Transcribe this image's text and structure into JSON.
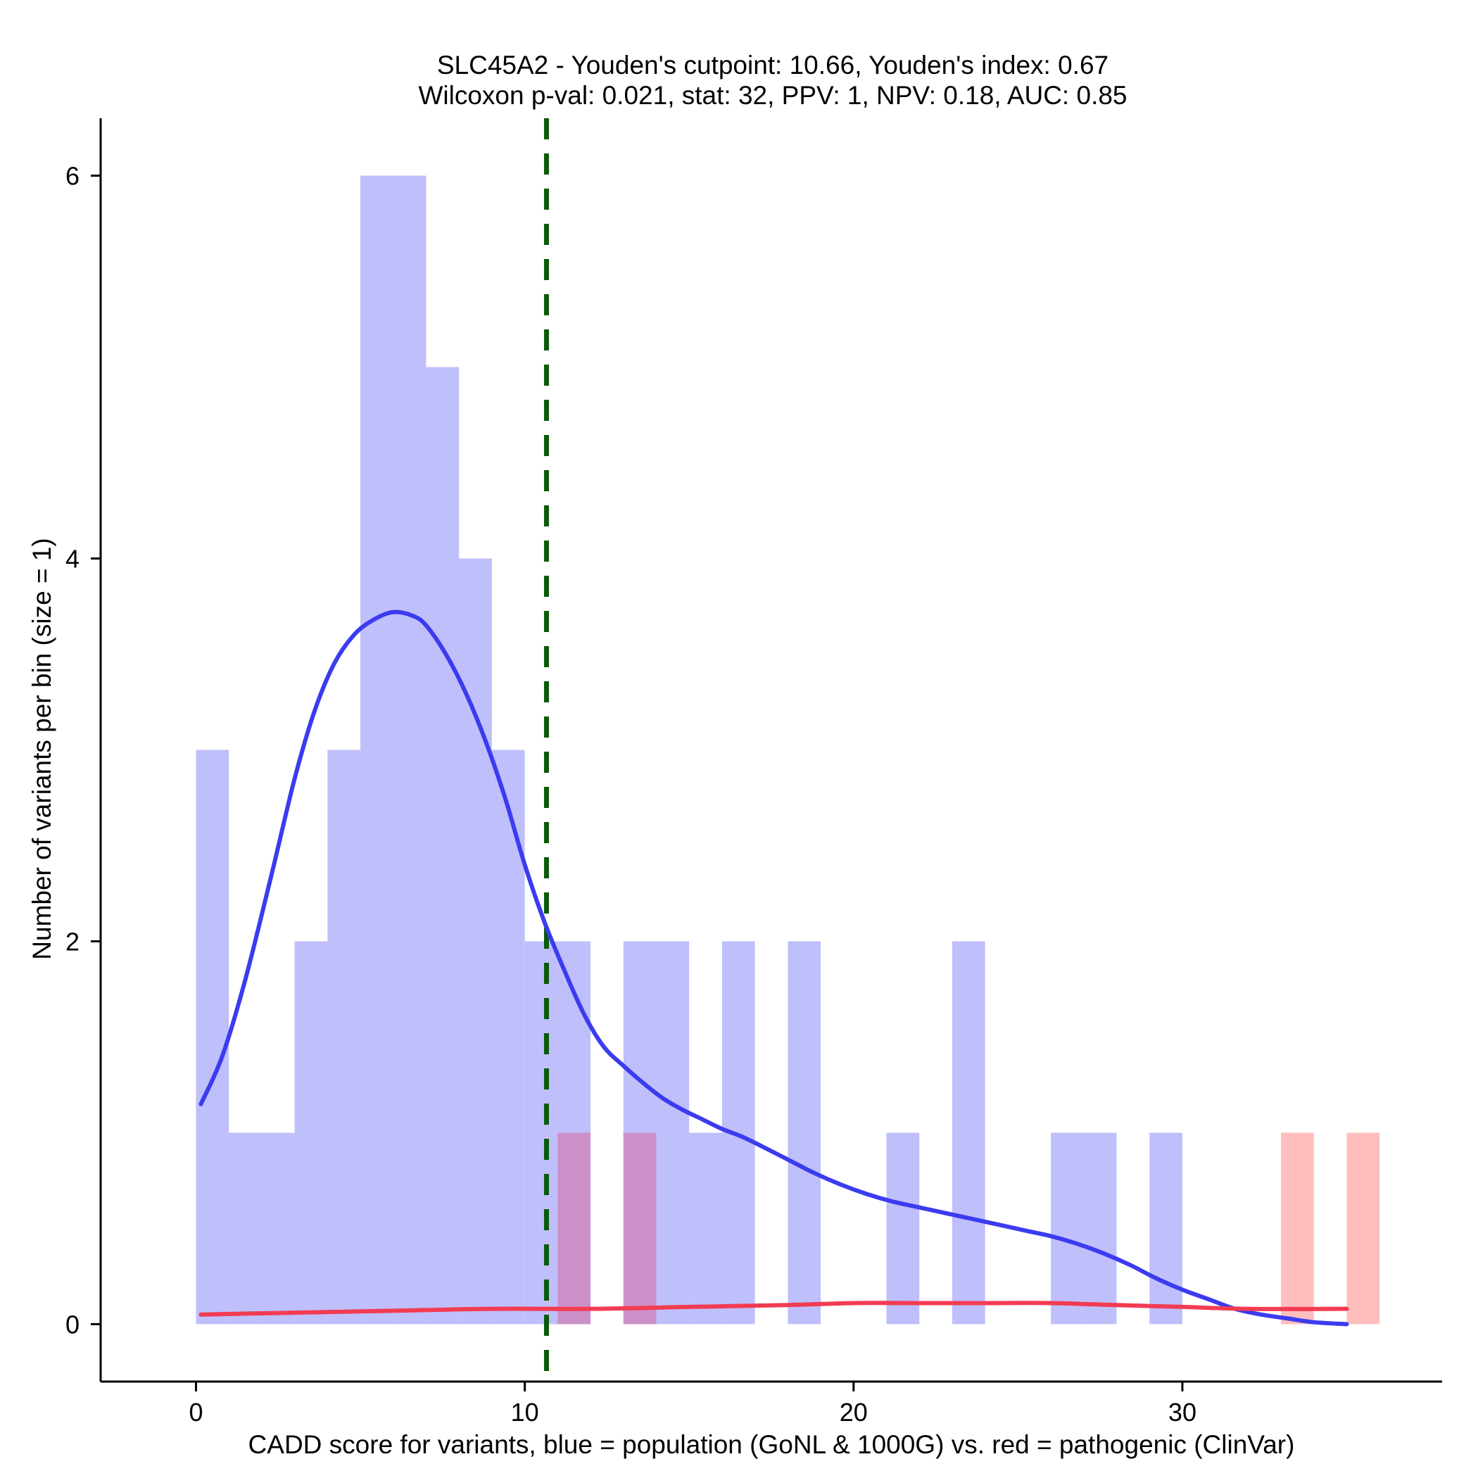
{
  "chart_data": {
    "type": "bar",
    "title_lines": [
      "SLC45A2 - Youden's cutpoint: 10.66, Youden's index: 0.67",
      "Wilcoxon p-val: 0.021, stat: 32, PPV: 1, NPV: 0.18, AUC: 0.85"
    ],
    "xlabel": "CADD score for variants, blue = population (GoNL & 1000G) vs. red = pathogenic (ClinVar)",
    "ylabel": "Number of variants per bin (size = 1)",
    "xlim": [
      -2.9,
      37.9
    ],
    "ylim": [
      -0.3,
      6.3
    ],
    "x_ticks": [
      0,
      10,
      20,
      30
    ],
    "y_ticks": [
      0,
      2,
      4,
      6
    ],
    "bin_width": 1,
    "colors": {
      "population_bar": "#bfbffb",
      "pathogenic_bar": "#ffbebe",
      "overlap_bar": "#cc90c8",
      "population_density": "#3b3bf0",
      "pathogenic_density": "#f23c52",
      "cutpoint": "#0a5a0a"
    },
    "cutpoint": 10.66,
    "series": [
      {
        "name": "population (GoNL & 1000G)",
        "bin_starts": [
          0,
          1,
          2,
          3,
          4,
          5,
          6,
          7,
          8,
          9,
          10,
          11,
          13,
          14,
          15,
          16,
          18,
          21,
          23,
          26,
          27,
          29
        ],
        "values": [
          3,
          1,
          1,
          2,
          3,
          6,
          6,
          5,
          4,
          3,
          2,
          2,
          2,
          2,
          1,
          2,
          2,
          1,
          2,
          1,
          1,
          1
        ]
      },
      {
        "name": "pathogenic (ClinVar)",
        "bin_starts": [
          11,
          13,
          33,
          35
        ],
        "values": [
          1,
          1,
          1,
          1
        ]
      }
    ],
    "density": [
      {
        "name": "population density",
        "x": [
          0.15,
          0.8,
          1.5,
          2.3,
          3.0,
          3.6,
          4.2,
          4.8,
          5.4,
          6.0,
          6.6,
          7.0,
          7.6,
          8.2,
          8.8,
          9.4,
          10.0,
          10.6,
          11.2,
          11.8,
          12.4,
          13.0,
          13.6,
          14.2,
          14.8,
          15.4,
          16.0,
          16.6,
          17.2,
          18.0,
          18.8,
          19.6,
          20.4,
          21.2,
          22.0,
          22.8,
          23.6,
          24.4,
          25.2,
          26.0,
          26.8,
          27.6,
          28.4,
          29.2,
          30.0,
          30.8,
          31.6,
          32.4,
          33.2,
          34.0,
          35.0
        ],
        "y": [
          1.15,
          1.4,
          1.8,
          2.35,
          2.85,
          3.2,
          3.45,
          3.6,
          3.68,
          3.72,
          3.7,
          3.65,
          3.5,
          3.3,
          3.05,
          2.75,
          2.4,
          2.1,
          1.85,
          1.62,
          1.45,
          1.35,
          1.26,
          1.18,
          1.12,
          1.07,
          1.02,
          0.98,
          0.93,
          0.86,
          0.79,
          0.73,
          0.68,
          0.64,
          0.61,
          0.58,
          0.55,
          0.52,
          0.49,
          0.46,
          0.42,
          0.37,
          0.31,
          0.24,
          0.18,
          0.13,
          0.08,
          0.05,
          0.03,
          0.01,
          0.0
        ]
      },
      {
        "name": "pathogenic density",
        "x": [
          0.15,
          3,
          6,
          9,
          12,
          15,
          18,
          20,
          22,
          24,
          26,
          28,
          30,
          32,
          35
        ],
        "y": [
          0.05,
          0.06,
          0.07,
          0.08,
          0.08,
          0.09,
          0.1,
          0.11,
          0.11,
          0.11,
          0.11,
          0.1,
          0.09,
          0.08,
          0.08
        ]
      }
    ]
  }
}
